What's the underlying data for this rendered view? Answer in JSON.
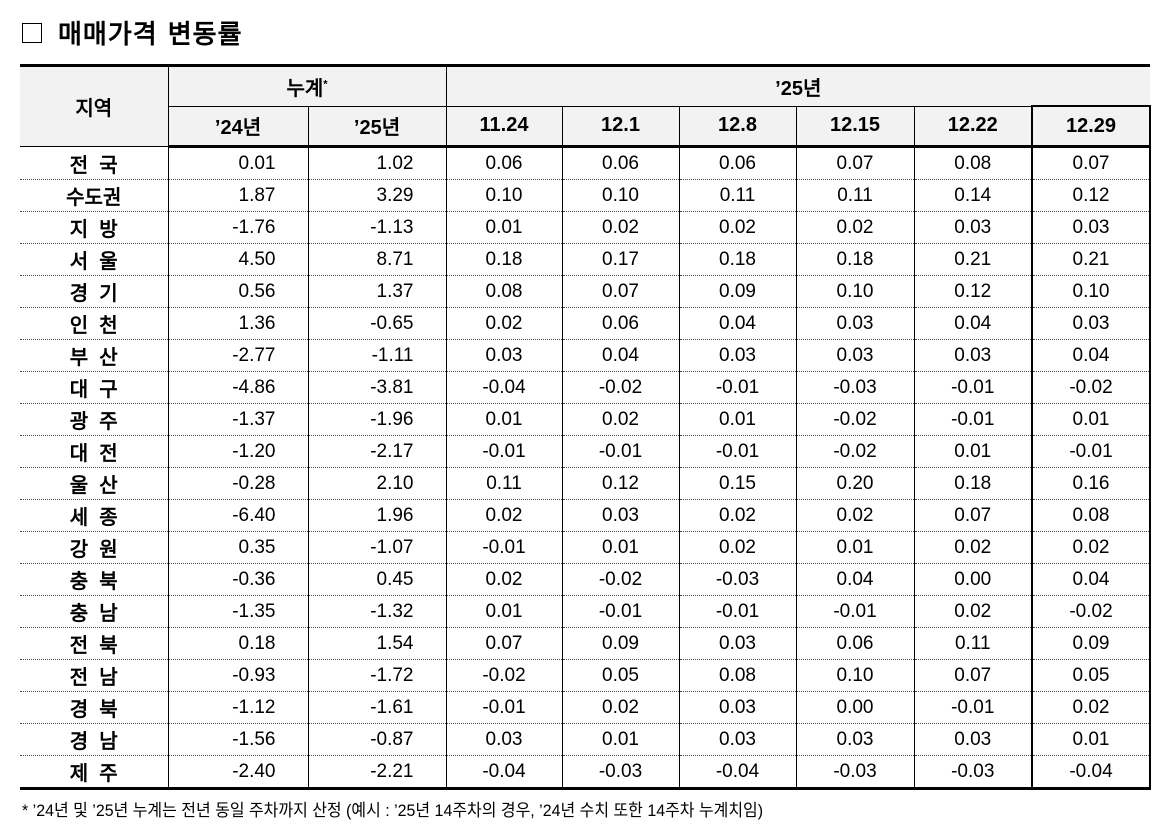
{
  "title": "매매가격 변동률",
  "header": {
    "region": "지역",
    "cumulative": "누계",
    "cumulative_mark": "*",
    "year_group": "’25년",
    "columns": [
      "’24년",
      "’25년",
      "11.24",
      "12.1",
      "12.8",
      "12.15",
      "12.22",
      "12.29"
    ]
  },
  "rows": [
    {
      "region": "전  국",
      "values": [
        "0.01",
        "1.02",
        "0.06",
        "0.06",
        "0.06",
        "0.07",
        "0.08",
        "0.07"
      ]
    },
    {
      "region": "수도권",
      "values": [
        "1.87",
        "3.29",
        "0.10",
        "0.10",
        "0.11",
        "0.11",
        "0.14",
        "0.12"
      ]
    },
    {
      "region": "지  방",
      "values": [
        "-1.76",
        "-1.13",
        "0.01",
        "0.02",
        "0.02",
        "0.02",
        "0.03",
        "0.03"
      ]
    },
    {
      "region": "서  울",
      "values": [
        "4.50",
        "8.71",
        "0.18",
        "0.17",
        "0.18",
        "0.18",
        "0.21",
        "0.21"
      ]
    },
    {
      "region": "경  기",
      "values": [
        "0.56",
        "1.37",
        "0.08",
        "0.07",
        "0.09",
        "0.10",
        "0.12",
        "0.10"
      ]
    },
    {
      "region": "인  천",
      "values": [
        "1.36",
        "-0.65",
        "0.02",
        "0.06",
        "0.04",
        "0.03",
        "0.04",
        "0.03"
      ]
    },
    {
      "region": "부  산",
      "values": [
        "-2.77",
        "-1.11",
        "0.03",
        "0.04",
        "0.03",
        "0.03",
        "0.03",
        "0.04"
      ]
    },
    {
      "region": "대  구",
      "values": [
        "-4.86",
        "-3.81",
        "-0.04",
        "-0.02",
        "-0.01",
        "-0.03",
        "-0.01",
        "-0.02"
      ]
    },
    {
      "region": "광  주",
      "values": [
        "-1.37",
        "-1.96",
        "0.01",
        "0.02",
        "0.01",
        "-0.02",
        "-0.01",
        "0.01"
      ]
    },
    {
      "region": "대  전",
      "values": [
        "-1.20",
        "-2.17",
        "-0.01",
        "-0.01",
        "-0.01",
        "-0.02",
        "0.01",
        "-0.01"
      ]
    },
    {
      "region": "울  산",
      "values": [
        "-0.28",
        "2.10",
        "0.11",
        "0.12",
        "0.15",
        "0.20",
        "0.18",
        "0.16"
      ]
    },
    {
      "region": "세  종",
      "values": [
        "-6.40",
        "1.96",
        "0.02",
        "0.03",
        "0.02",
        "0.02",
        "0.07",
        "0.08"
      ]
    },
    {
      "region": "강  원",
      "values": [
        "0.35",
        "-1.07",
        "-0.01",
        "0.01",
        "0.02",
        "0.01",
        "0.02",
        "0.02"
      ]
    },
    {
      "region": "충  북",
      "values": [
        "-0.36",
        "0.45",
        "0.02",
        "-0.02",
        "-0.03",
        "0.04",
        "0.00",
        "0.04"
      ]
    },
    {
      "region": "충  남",
      "values": [
        "-1.35",
        "-1.32",
        "0.01",
        "-0.01",
        "-0.01",
        "-0.01",
        "0.02",
        "-0.02"
      ]
    },
    {
      "region": "전  북",
      "values": [
        "0.18",
        "1.54",
        "0.07",
        "0.09",
        "0.03",
        "0.06",
        "0.11",
        "0.09"
      ]
    },
    {
      "region": "전  남",
      "values": [
        "-0.93",
        "-1.72",
        "-0.02",
        "0.05",
        "0.08",
        "0.10",
        "0.07",
        "0.05"
      ]
    },
    {
      "region": "경  북",
      "values": [
        "-1.12",
        "-1.61",
        "-0.01",
        "0.02",
        "0.03",
        "0.00",
        "-0.01",
        "0.02"
      ]
    },
    {
      "region": "경  남",
      "values": [
        "-1.56",
        "-0.87",
        "0.03",
        "0.01",
        "0.03",
        "0.03",
        "0.03",
        "0.01"
      ]
    },
    {
      "region": "제  주",
      "values": [
        "-2.40",
        "-2.21",
        "-0.04",
        "-0.03",
        "-0.04",
        "-0.03",
        "-0.03",
        "-0.04"
      ]
    }
  ],
  "footnote": "* ’24년 및 ’25년 누계는 전년 동일 주차까지 산정 (예시 : ’25년 14주차의 경우, ’24년 수치 또한 14주차 누계치임)"
}
